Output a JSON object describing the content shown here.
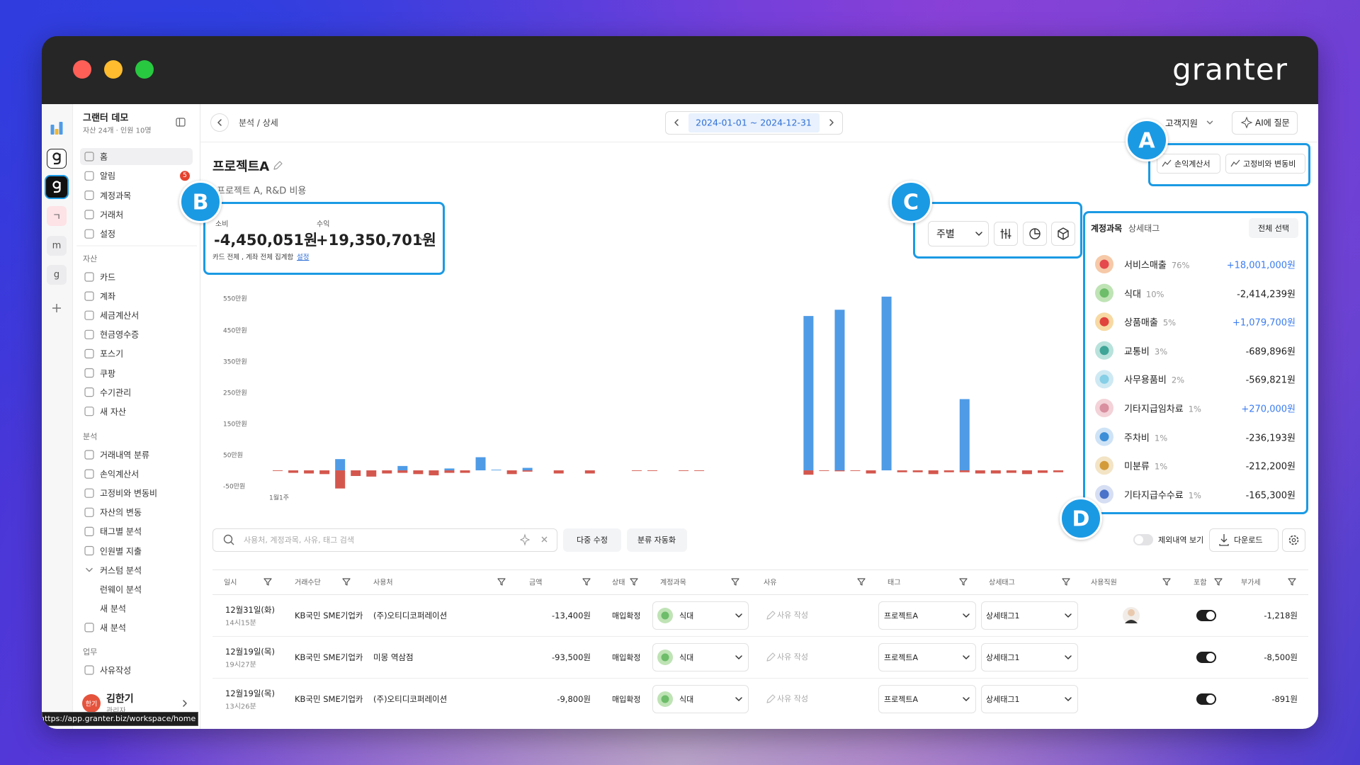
{
  "window": {
    "logo": "granter"
  },
  "workspace": {
    "name": "그랜터 데모",
    "meta": "자산 24개 · 인원 10명",
    "rail": [
      "ㄱ",
      "m",
      "g"
    ]
  },
  "sidebar": {
    "main": [
      {
        "label": "홈"
      },
      {
        "label": "알림",
        "badge": 5
      },
      {
        "label": "계정과목"
      },
      {
        "label": "거래처"
      },
      {
        "label": "설정"
      }
    ],
    "sections": [
      {
        "title": "자산",
        "items": [
          "카드",
          "계좌",
          "세금계산서",
          "현금영수증",
          "포스기",
          "쿠팡",
          "수기관리",
          "새 자산"
        ]
      },
      {
        "title": "분석",
        "items": [
          "거래내역 분류",
          "손익계산서",
          "고정비와 변동비",
          "자산의 변동",
          "태그별 분석",
          "인원별 지출",
          "커스텀 분석",
          "런웨이 분석",
          "새 분석",
          "새 분석"
        ]
      },
      {
        "title": "업무",
        "items": [
          "사유작성"
        ]
      }
    ],
    "user": {
      "avatar": "한기",
      "name": "김한기",
      "role": "관리자"
    },
    "status_url": "https://app.granter.biz/workspace/home"
  },
  "header": {
    "breadcrumb": "분석 / 상세",
    "date_range": "2024-01-01 ~ 2024-12-31",
    "support": "고객지원",
    "ai": "AI에 질문"
  },
  "reports": [
    "손익계산서",
    "고정비와 변동비"
  ],
  "project": {
    "title": "프로젝트A",
    "description": "프로젝트 A, R&D 비용"
  },
  "summary": {
    "spend_label": "소비",
    "spend": "-4,450,051원",
    "income_label": "수익",
    "income": "+19,350,701원",
    "note": "카드 전체 , 계좌 전체 집계함",
    "link": "설정"
  },
  "controls": {
    "period": "주별"
  },
  "callouts": [
    "A",
    "B",
    "C",
    "D"
  ],
  "chart_data": {
    "type": "bar",
    "categories": [
      "1월1주",
      null,
      null,
      null,
      null,
      null,
      null,
      null,
      null,
      null,
      null,
      null,
      null,
      null,
      null,
      null,
      null,
      null,
      null,
      null,
      null,
      null,
      null,
      null,
      null,
      null,
      null,
      null,
      null,
      null,
      null,
      null,
      null,
      null,
      null,
      null,
      null,
      null,
      null,
      null,
      null,
      null,
      null,
      null,
      null,
      null,
      null,
      null,
      null,
      null,
      null,
      null
    ],
    "series": [
      {
        "color": "#4f9be6",
        "values": [
          null,
          null,
          null,
          null,
          36,
          null,
          null,
          null,
          14,
          null,
          null,
          6,
          null,
          42,
          2,
          null,
          8,
          null,
          null,
          null,
          null,
          null,
          null,
          null,
          null,
          null,
          null,
          null,
          null,
          null,
          null,
          null,
          null,
          null,
          494,
          null,
          514,
          null,
          null,
          556,
          null,
          null,
          null,
          null,
          228,
          null,
          null,
          null,
          null,
          null,
          null,
          null
        ]
      },
      {
        "color": "#d4574e",
        "values": [
          -2,
          -8,
          -10,
          -12,
          -58,
          -18,
          -20,
          -10,
          -8,
          -12,
          -16,
          -8,
          -8,
          null,
          null,
          -12,
          -4,
          null,
          -10,
          null,
          -10,
          null,
          null,
          -2,
          -2,
          null,
          -2,
          -2,
          null,
          null,
          null,
          null,
          null,
          null,
          -14,
          -2,
          -3,
          -2,
          -10,
          null,
          -6,
          -6,
          -12,
          -6,
          -6,
          -10,
          -10,
          -8,
          -12,
          -8,
          -6,
          null
        ]
      }
    ],
    "ylim": [
      -60,
      560
    ],
    "yticks": [
      {
        "value": 550,
        "label": "550만원"
      },
      {
        "value": 450,
        "label": "450만원"
      },
      {
        "value": 350,
        "label": "350만원"
      },
      {
        "value": 250,
        "label": "250만원"
      },
      {
        "value": 150,
        "label": "150만원"
      },
      {
        "value": 50,
        "label": "50만원"
      },
      {
        "value": -50,
        "label": "-50만원"
      }
    ],
    "grid": false
  },
  "panel": {
    "tabs": [
      "계정과목",
      "상세태그"
    ],
    "select_all": "전체 선택",
    "items": [
      {
        "name": "서비스매출",
        "share": "76%",
        "amount": "+18,001,000원"
      },
      {
        "name": "식대",
        "share": "10%",
        "amount": "-2,414,239원"
      },
      {
        "name": "상품매출",
        "share": "5%",
        "amount": "+1,079,700원"
      },
      {
        "name": "교통비",
        "share": "3%",
        "amount": "-689,896원"
      },
      {
        "name": "사무용품비",
        "share": "2%",
        "amount": "-569,821원"
      },
      {
        "name": "기타지급임차료",
        "share": "1%",
        "amount": "+270,000원"
      },
      {
        "name": "주차비",
        "share": "1%",
        "amount": "-236,193원"
      },
      {
        "name": "미분류",
        "share": "1%",
        "amount": "-212,200원"
      },
      {
        "name": "기타지급수수료",
        "share": "1%",
        "amount": "-165,300원"
      }
    ]
  },
  "toolbar": {
    "search": "사용처, 계정과목, 사유, 태그 검색",
    "bulk_edit": "다중 수정",
    "auto_classify": "분류 자동화",
    "show_excluded": "제외내역 보기",
    "download": "다운로드"
  },
  "table": {
    "columns": [
      "일시",
      "거래수단",
      "사용처",
      "금액",
      "상태",
      "계정과목",
      "사유",
      "태그",
      "상세태그",
      "사용직원",
      "포함",
      "부가세"
    ],
    "rows": [
      {
        "date": "12월31일(화)",
        "time": "14시15분",
        "method": "KB국민 SME기업카",
        "merchant": "(주)오티디코퍼레이션",
        "amount": "-13,400원",
        "status": "매입확정",
        "account": "식대",
        "memo": "사유 작성",
        "tag": "프로젝트A",
        "detail_tag": "상세태그1",
        "vat": "-1,218원"
      },
      {
        "date": "12월19일(목)",
        "time": "19시27분",
        "method": "KB국민 SME기업카",
        "merchant": "미몽 역삼점",
        "amount": "-93,500원",
        "status": "매입확정",
        "account": "식대",
        "memo": "사유 작성",
        "tag": "프로젝트A",
        "detail_tag": "상세태그1",
        "vat": "-8,500원"
      },
      {
        "date": "12월19일(목)",
        "time": "13시26분",
        "method": "KB국민 SME기업카",
        "merchant": "(주)오티디코퍼레이션",
        "amount": "-9,800원",
        "status": "매입확정",
        "account": "식대",
        "memo": "사유 작성",
        "tag": "프로젝트A",
        "detail_tag": "상세태그1",
        "vat": "-891원"
      }
    ]
  }
}
